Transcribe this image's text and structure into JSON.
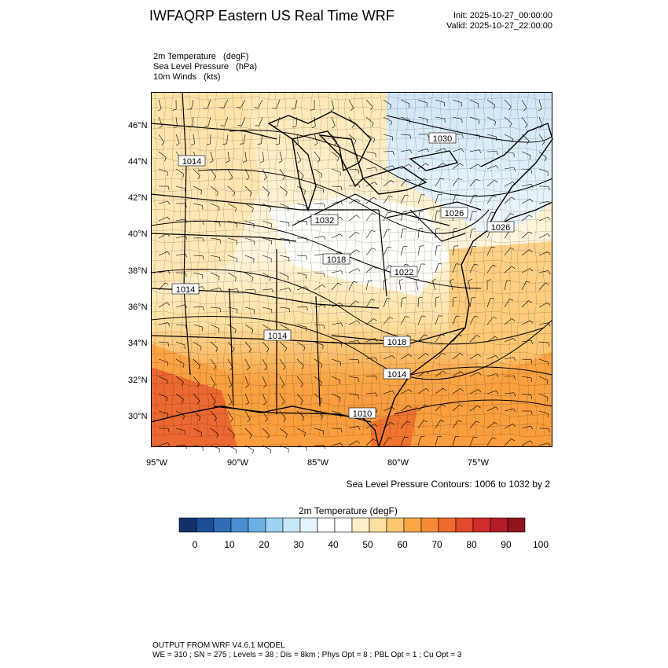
{
  "header": {
    "title": "IWFAQRP Eastern US Real Time WRF",
    "init": "Init: 2025-10-27_00:00:00",
    "valid": "Valid: 2025-10-27_22:00:00"
  },
  "fields": [
    "2m Temperature   (degF)",
    "Sea Level Pressure   (hPa)",
    "10m Winds   (kts)"
  ],
  "map": {
    "lat_ticks": [
      "46°N",
      "44°N",
      "42°N",
      "40°N",
      "38°N",
      "36°N",
      "34°N",
      "32°N",
      "30°N"
    ],
    "lon_ticks": [
      "95°W",
      "90°W",
      "85°W",
      "80°W",
      "75°W"
    ],
    "isobar_labels": [
      "1030",
      "1014",
      "1032",
      "1026",
      "1026",
      "1018",
      "1022",
      "1014",
      "1014",
      "1018",
      "1014",
      "1010"
    ],
    "contour_note": "Sea Level Pressure Contours: 1006 to 1032 by 2",
    "colors": {
      "warm_south": "#e9632f",
      "orange": "#f9a040",
      "light_orange": "#fcc770",
      "tan": "#fde7b3",
      "white": "#ffffff",
      "light_blue": "#d9ecf7"
    }
  },
  "colorbar": {
    "title": "2m Temperature  (degF)",
    "labels": [
      "0",
      "10",
      "20",
      "30",
      "40",
      "50",
      "60",
      "70",
      "80",
      "90",
      "100"
    ],
    "colors": [
      "#14306b",
      "#1e4d96",
      "#2f6db7",
      "#4a8fcf",
      "#6db0e3",
      "#9dd2f2",
      "#c7e6f7",
      "#e5f3fb",
      "#ffffff",
      "#ffffff",
      "#fdf0c8",
      "#fde0a0",
      "#fcc770",
      "#f9a747",
      "#f48a36",
      "#ee6a2d",
      "#e24a2b",
      "#cf2c2a",
      "#b51b26",
      "#8e1520"
    ]
  },
  "footer": {
    "line1": "OUTPUT FROM WRF V4.6.1 MODEL",
    "line2": "WE = 310 ; SN = 275 ; Levels = 38 ; Dis = 8km ; Phys Opt = 8 ; PBL Opt = 1 ; Cu Opt = 3"
  }
}
